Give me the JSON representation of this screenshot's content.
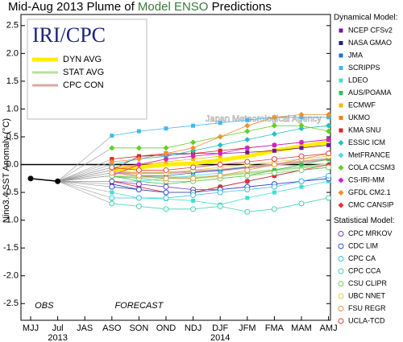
{
  "chart_data": {
    "type": "line",
    "title": [
      {
        "text": "Mid-Aug 2013 Plume of ",
        "color": "#000000"
      },
      {
        "text": "Model ENSO",
        "color": "#3a7a3a"
      },
      {
        "text": " Predictions",
        "color": "#000000"
      }
    ],
    "logo": "IRI/CPC",
    "watermark": "Japan Meteorological Agency",
    "y_label": "Nino3.4 SST Anomaly (°C)",
    "obs_label": "OBS",
    "forecast_label": "FORECAST",
    "years": [
      {
        "label": "2013",
        "at": 1
      },
      {
        "label": "2014",
        "at": 7
      }
    ],
    "categories": [
      "MJJ",
      "Jul",
      "JAS",
      "ASO",
      "SON",
      "OND",
      "NDJ",
      "DJF",
      "JFM",
      "FMA",
      "MAM",
      "AMJ"
    ],
    "ylim": [
      -2.8,
      2.7
    ],
    "yticks": [
      {
        "value": -2.5,
        "label": "-2.5"
      },
      {
        "value": -2,
        "label": "-2.0"
      },
      {
        "value": -1.5,
        "label": "-1.5"
      },
      {
        "value": -1,
        "label": "-1.0"
      },
      {
        "value": -0.5,
        "label": "-0.5"
      },
      {
        "value": 0,
        "label": "0.0"
      },
      {
        "value": 0.5,
        "label": "0.5"
      },
      {
        "value": 1,
        "label": "1.0"
      },
      {
        "value": 1.5,
        "label": "1.5"
      },
      {
        "value": 2,
        "label": "2.0"
      },
      {
        "value": 2.5,
        "label": "2.5"
      }
    ],
    "obs": {
      "color": "#000000",
      "values": [
        -0.25,
        -0.3,
        null,
        null,
        null,
        null,
        null,
        null,
        null,
        null,
        null,
        null
      ]
    },
    "averages": [
      {
        "name": "DYN AVG",
        "color": "#ffee00",
        "width": 5,
        "values": [
          null,
          null,
          null,
          -0.1,
          -0.05,
          0,
          0.02,
          0.08,
          0.15,
          0.25,
          0.33,
          0.4
        ]
      },
      {
        "name": "STAT AVG",
        "color": "#b8e0a0",
        "width": 3,
        "values": [
          null,
          null,
          null,
          -0.22,
          -0.22,
          -0.23,
          -0.24,
          -0.2,
          -0.15,
          -0.1,
          -0.05,
          0
        ]
      },
      {
        "name": "CPC CON",
        "color": "#d8a8a8",
        "width": 3,
        "values": [
          null,
          null,
          null,
          -0.15,
          -0.15,
          -0.15,
          -0.12,
          -0.1,
          -0.05,
          0,
          0.05,
          0.1
        ]
      }
    ],
    "groups": [
      {
        "name": "Dynamical Model:",
        "series": [
          {
            "name": "NCEP CFSv2",
            "color": "#6a1b9a",
            "marker": "square",
            "values": [
              null,
              null,
              null,
              -0.1,
              0.15,
              0.17,
              0.2,
              0.2,
              0.22,
              0.25,
              0.3,
              0.35
            ]
          },
          {
            "name": "NASA GMAO",
            "color": "#1a237e",
            "marker": "square",
            "values": [
              null,
              null,
              null,
              -0.35,
              -0.45,
              -0.5,
              -0.5,
              -0.4,
              -0.3,
              -0.2,
              -0.1,
              -0.05
            ]
          },
          {
            "name": "JMA",
            "color": "#1e6fd9",
            "marker": "square",
            "values": [
              null,
              null,
              null,
              -0.15,
              -0.2,
              -0.2,
              -0.15,
              -0.1,
              -0.05,
              null,
              null,
              null
            ]
          },
          {
            "name": "SCRIPPS",
            "color": "#40b8f0",
            "marker": "square",
            "values": [
              null,
              null,
              null,
              0.52,
              0.6,
              0.65,
              0.7,
              0.75,
              0.8,
              0.85,
              0.85,
              0.85
            ]
          },
          {
            "name": "LDEO",
            "color": "#40e0d0",
            "marker": "square",
            "values": [
              null,
              null,
              null,
              -0.5,
              -0.6,
              -0.62,
              -0.65,
              -0.72,
              -0.6,
              -0.5,
              -0.4,
              -0.3
            ]
          },
          {
            "name": "AUS/POAMA",
            "color": "#30c050",
            "marker": "square",
            "values": [
              null,
              null,
              null,
              -0.2,
              -0.3,
              -0.35,
              -0.3,
              -0.25,
              -0.2,
              -0.1,
              0,
              0.1
            ]
          },
          {
            "name": "ECMWF",
            "color": "#f5b800",
            "marker": "square",
            "values": [
              null,
              null,
              null,
              -0.05,
              0.0,
              0.05,
              0.1,
              0.15,
              null,
              null,
              null,
              null
            ]
          },
          {
            "name": "UKMO",
            "color": "#f08020",
            "marker": "square",
            "values": [
              null,
              null,
              null,
              -0.1,
              0.0,
              0.1,
              null,
              null,
              null,
              null,
              null,
              null
            ]
          },
          {
            "name": "KMA SNU",
            "color": "#e02020",
            "marker": "square",
            "values": [
              null,
              null,
              null,
              0.1,
              0.15,
              0.2,
              0.2,
              0.25,
              0.3,
              0.35,
              0.4,
              0.45
            ]
          },
          {
            "name": "ESSIC ICM",
            "color": "#20c0c0",
            "marker": "diamond",
            "values": [
              null,
              null,
              null,
              0.0,
              0.1,
              0.15,
              0.25,
              0.35,
              0.45,
              0.55,
              0.65,
              0.7
            ]
          },
          {
            "name": "MetFRANCE",
            "color": "#50d8e8",
            "marker": "diamond",
            "values": [
              null,
              null,
              null,
              -0.3,
              -0.3,
              -0.25,
              -0.2,
              -0.15,
              null,
              null,
              null,
              null
            ]
          },
          {
            "name": "COLA CCSM3",
            "color": "#60d020",
            "marker": "diamond",
            "values": [
              null,
              null,
              null,
              0.3,
              0.3,
              0.3,
              0.4,
              0.5,
              0.6,
              0.7,
              0.7,
              0.6
            ]
          },
          {
            "name": "CS-IRI-MM",
            "color": "#d020d0",
            "marker": "diamond",
            "values": [
              null,
              null,
              null,
              -0.2,
              0.0,
              0.1,
              0.15,
              0.2,
              0.3,
              0.35,
              0.4,
              0.45
            ]
          },
          {
            "name": "GFDL CM2.1",
            "color": "#f09030",
            "marker": "diamond",
            "values": [
              null,
              null,
              null,
              0.05,
              0.1,
              0.2,
              0.3,
              0.5,
              0.7,
              0.85,
              0.9,
              0.9
            ]
          },
          {
            "name": "CMC CANSIP",
            "color": "#e83030",
            "marker": "diamond",
            "values": [
              null,
              null,
              null,
              -0.3,
              -0.4,
              -0.5,
              -0.5,
              -0.4,
              -0.3,
              -0.2,
              -0.1,
              0.0
            ]
          }
        ]
      },
      {
        "name": "Statistical Model:",
        "series": [
          {
            "name": "CPC MRKOV",
            "color": "#7040c0",
            "marker": "circle",
            "values": [
              null,
              null,
              null,
              -0.3,
              -0.35,
              -0.4,
              -0.45,
              -0.45,
              -0.4,
              -0.35,
              -0.3,
              -0.25
            ]
          },
          {
            "name": "CDC LIM",
            "color": "#3050d0",
            "marker": "circle",
            "values": [
              null,
              null,
              null,
              -0.4,
              -0.45,
              -0.5,
              -0.5,
              -0.45,
              -0.4,
              -0.35,
              -0.3,
              -0.25
            ]
          },
          {
            "name": "CPC CA",
            "color": "#40c0e0",
            "marker": "circle",
            "values": [
              null,
              null,
              null,
              -0.6,
              -0.6,
              -0.6,
              -0.55,
              -0.5,
              -0.45,
              -0.4,
              -0.3,
              -0.2
            ]
          },
          {
            "name": "CPC CCA",
            "color": "#40d0b0",
            "marker": "circle",
            "values": [
              null,
              null,
              null,
              -0.7,
              -0.75,
              -0.8,
              -0.8,
              -0.75,
              -0.85,
              -0.8,
              -0.7,
              -0.6
            ]
          },
          {
            "name": "CSU CLIPR",
            "color": "#70d060",
            "marker": "circle",
            "values": [
              null,
              null,
              null,
              -0.2,
              -0.25,
              -0.3,
              -0.3,
              -0.25,
              -0.2,
              -0.15,
              -0.1,
              -0.05
            ]
          },
          {
            "name": "UBC NNET",
            "color": "#e0d040",
            "marker": "circle",
            "values": [
              null,
              null,
              null,
              -0.1,
              -0.15,
              -0.15,
              -0.1,
              -0.05,
              0.0,
              0.05,
              0.1,
              0.15
            ]
          },
          {
            "name": "FSU REGR",
            "color": "#f09040",
            "marker": "circle",
            "values": [
              null,
              null,
              null,
              -0.15,
              -0.2,
              -0.25,
              -0.25,
              -0.2,
              -0.1,
              0.0,
              0.1,
              0.2
            ]
          },
          {
            "name": "UCLA-TCD",
            "color": "#e04040",
            "marker": "circle",
            "values": [
              null,
              null,
              null,
              -0.05,
              -0.1,
              -0.1,
              -0.05,
              0.0,
              0.05,
              0.1,
              0.15,
              0.2
            ]
          }
        ]
      }
    ]
  }
}
